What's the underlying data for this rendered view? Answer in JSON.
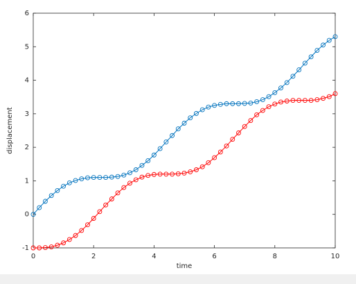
{
  "chart_data": {
    "type": "line",
    "xlabel": "time",
    "ylabel": "displacement",
    "x": [
      0,
      0.2,
      0.4,
      0.6,
      0.8,
      1.0,
      1.2,
      1.4,
      1.6,
      1.8,
      2.0,
      2.2,
      2.4,
      2.6,
      2.8,
      3.0,
      3.2,
      3.4,
      3.6,
      3.8,
      4.0,
      4.2,
      4.4,
      4.6,
      4.8,
      5.0,
      5.2,
      5.4,
      5.6,
      5.8,
      6.0,
      6.2,
      6.4,
      6.6,
      6.8,
      7.0,
      7.2,
      7.4,
      7.6,
      7.8,
      8.0,
      8.2,
      8.4,
      8.6,
      8.8,
      9.0,
      9.2,
      9.4,
      9.6,
      9.8,
      10
    ],
    "series": [
      {
        "color": "#0072bd",
        "values": [
          0,
          0.2,
          0.39,
          0.56,
          0.71,
          0.84,
          0.94,
          1.01,
          1.06,
          1.09,
          1.1,
          1.1,
          1.1,
          1.11,
          1.13,
          1.17,
          1.24,
          1.33,
          1.46,
          1.6,
          1.77,
          1.96,
          2.16,
          2.35,
          2.55,
          2.72,
          2.88,
          3.01,
          3.12,
          3.2,
          3.25,
          3.28,
          3.3,
          3.3,
          3.3,
          3.31,
          3.32,
          3.36,
          3.42,
          3.51,
          3.63,
          3.77,
          3.93,
          4.12,
          4.31,
          4.51,
          4.7,
          4.89,
          5.05,
          5.19,
          5.3
        ]
      },
      {
        "color": "#ff0000",
        "values": [
          -1,
          -1.0,
          -0.99,
          -0.97,
          -0.92,
          -0.85,
          -0.75,
          -0.63,
          -0.48,
          -0.31,
          -0.12,
          0.08,
          0.28,
          0.46,
          0.64,
          0.8,
          0.93,
          1.03,
          1.11,
          1.16,
          1.19,
          1.2,
          1.2,
          1.2,
          1.21,
          1.23,
          1.27,
          1.33,
          1.42,
          1.54,
          1.69,
          1.86,
          2.04,
          2.24,
          2.43,
          2.62,
          2.8,
          2.97,
          3.1,
          3.21,
          3.29,
          3.35,
          3.38,
          3.4,
          3.4,
          3.4,
          3.4,
          3.42,
          3.46,
          3.51,
          3.6
        ]
      }
    ],
    "xlim": [
      0,
      10
    ],
    "xticks": [
      0,
      2,
      4,
      6,
      8,
      10
    ],
    "ylim": [
      -1,
      6
    ],
    "yticks": [
      -1,
      0,
      1,
      2,
      3,
      4,
      5,
      6
    ]
  }
}
